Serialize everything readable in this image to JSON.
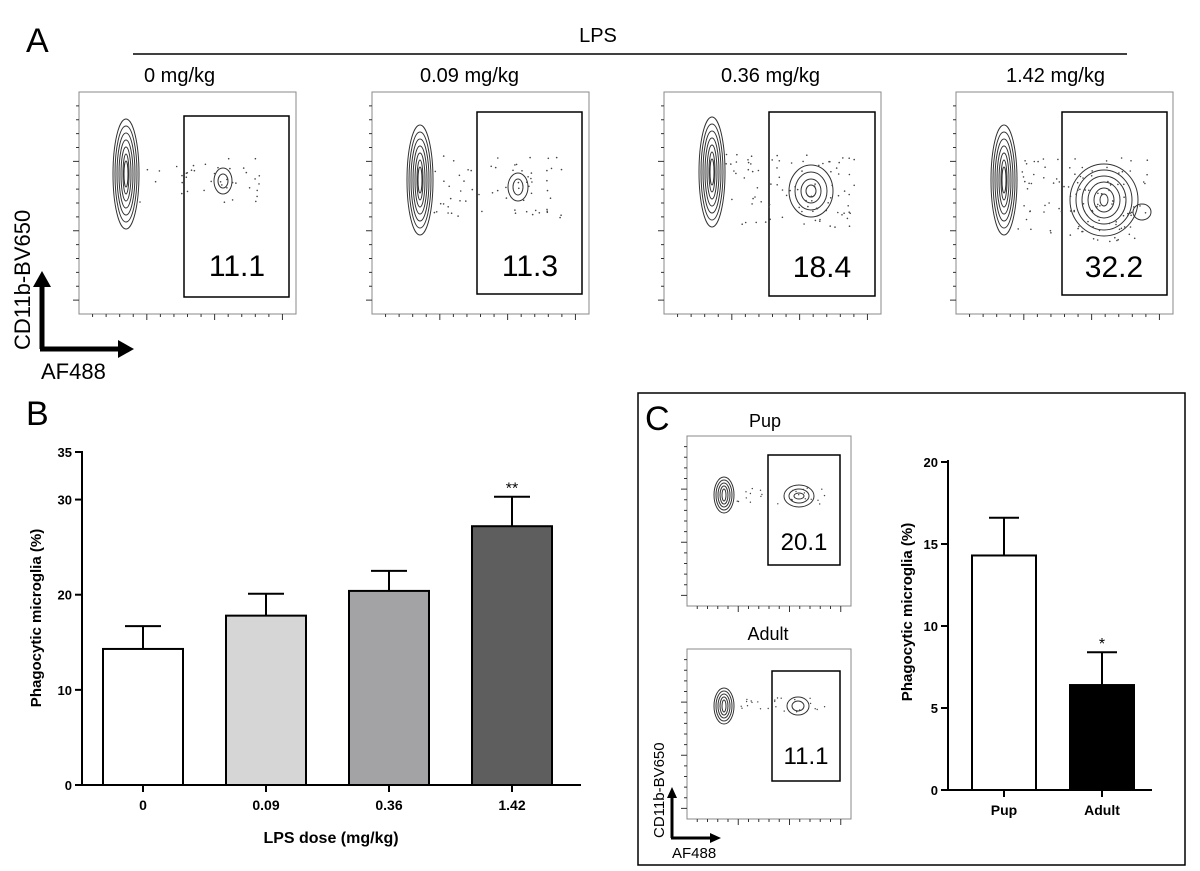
{
  "panels": {
    "a": "A",
    "b": "B",
    "c": "C"
  },
  "panel_a": {
    "treatment_label": "LPS",
    "y_axis": "CD11b-BV650",
    "x_axis": "AF488",
    "plots": [
      {
        "dose_label": "0 mg/kg",
        "gate_value": "11.1"
      },
      {
        "dose_label": "0.09 mg/kg",
        "gate_value": "11.3"
      },
      {
        "dose_label": "0.36 mg/kg",
        "gate_value": "18.4"
      },
      {
        "dose_label": "1.42 mg/kg",
        "gate_value": "32.2"
      }
    ]
  },
  "panel_c_plots": {
    "y_axis": "CD11b-BV650",
    "x_axis": "AF488",
    "plots": [
      {
        "title": "Pup",
        "gate_value": "20.1"
      },
      {
        "title": "Adult",
        "gate_value": "11.1"
      }
    ]
  },
  "colors": {
    "bar_0": "#ffffff",
    "bar_009": "#d6d6d6",
    "bar_036": "#a3a3a6",
    "bar_142": "#5e5e5e",
    "bar_pup": "#ffffff",
    "bar_adult": "#000000"
  },
  "chart_data": [
    {
      "type": "bar",
      "panel": "B",
      "categories": [
        "0",
        "0.09",
        "0.36",
        "1.42"
      ],
      "values": [
        14.3,
        17.8,
        20.4,
        27.2
      ],
      "errors": [
        2.4,
        2.3,
        2.1,
        3.1
      ],
      "significance": [
        "",
        "",
        "",
        "**"
      ],
      "xlabel": "LPS dose (mg/kg)",
      "ylabel": "Phagocytic microglia  (%)",
      "ylim": [
        0,
        35
      ],
      "yticks": [
        "0",
        "10",
        "20",
        "30",
        "35"
      ]
    },
    {
      "type": "bar",
      "panel": "C",
      "categories": [
        "Pup",
        "Adult"
      ],
      "values": [
        14.3,
        6.4
      ],
      "errors": [
        2.3,
        2.0
      ],
      "significance": [
        "",
        "*"
      ],
      "xlabel": "",
      "ylabel": "Phagocytic microglia  (%)",
      "ylim": [
        0,
        20
      ],
      "yticks": [
        "0",
        "5",
        "10",
        "15",
        "20"
      ]
    }
  ]
}
